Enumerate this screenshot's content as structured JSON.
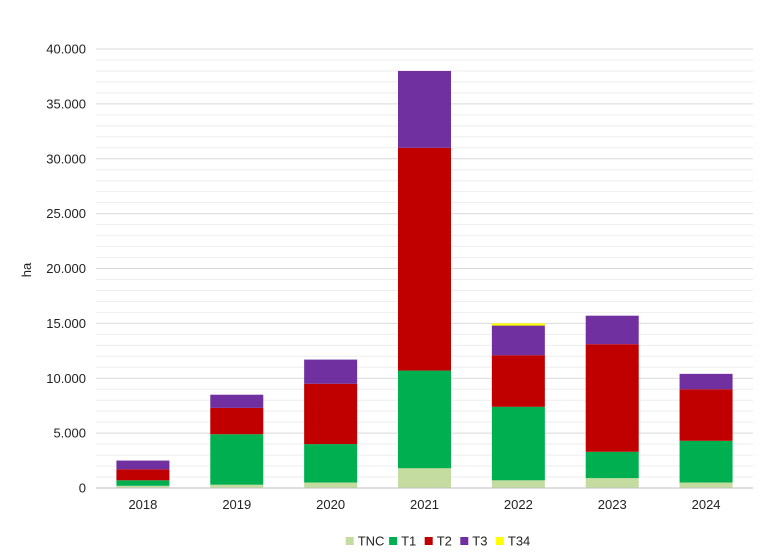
{
  "chart_data": {
    "type": "bar",
    "stacked": true,
    "categories": [
      "2018",
      "2019",
      "2020",
      "2021",
      "2022",
      "2023",
      "2024"
    ],
    "series": [
      {
        "name": "TNC",
        "color": "#c5dca0",
        "values": [
          200,
          300,
          500,
          1800,
          700,
          900,
          500
        ]
      },
      {
        "name": "T1",
        "color": "#00b050",
        "values": [
          500,
          4600,
          3500,
          8900,
          6700,
          2400,
          3800
        ]
      },
      {
        "name": "T2",
        "color": "#c00000",
        "values": [
          1000,
          2400,
          5500,
          20300,
          4700,
          9800,
          4700
        ]
      },
      {
        "name": "T3",
        "color": "#7030a0",
        "values": [
          800,
          1200,
          2200,
          7000,
          2700,
          2600,
          1400
        ]
      },
      {
        "name": "T34",
        "color": "#ffff00",
        "values": [
          0,
          0,
          0,
          0,
          200,
          0,
          0
        ]
      }
    ],
    "ylabel": "ha",
    "ylim": [
      0,
      40000
    ],
    "y_ticks": [
      0,
      5000,
      10000,
      15000,
      20000,
      25000,
      30000,
      35000,
      40000
    ],
    "y_tick_labels": [
      "0",
      "5.000",
      "10.000",
      "15.000",
      "20.000",
      "25.000",
      "30.000",
      "35.000",
      "40.000"
    ],
    "grid": true,
    "legend_position": "bottom-center"
  }
}
